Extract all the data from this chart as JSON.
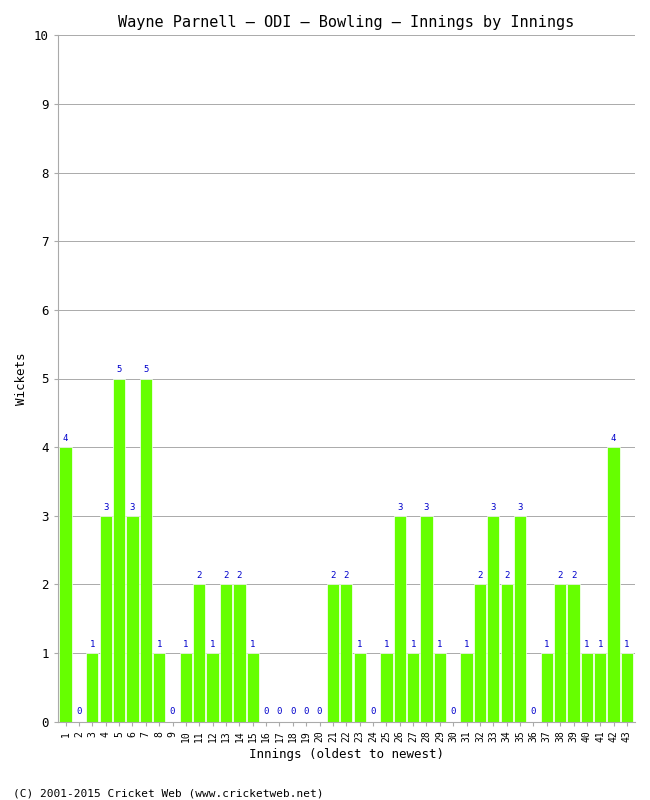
{
  "title": "Wayne Parnell – ODI – Bowling – Innings by Innings",
  "xlabel": "Innings (oldest to newest)",
  "ylabel": "Wickets",
  "ylim": [
    0,
    10
  ],
  "yticks": [
    0,
    1,
    2,
    3,
    4,
    5,
    6,
    7,
    8,
    9,
    10
  ],
  "bar_color": "#66FF00",
  "label_color": "#0000CC",
  "background_color": "#FFFFFF",
  "footer": "(C) 2001-2015 Cricket Web (www.cricketweb.net)",
  "innings": [
    1,
    2,
    3,
    4,
    5,
    6,
    7,
    8,
    9,
    10,
    11,
    12,
    13,
    14,
    15,
    16,
    17,
    18,
    19,
    20,
    21,
    22,
    23,
    24,
    25,
    26,
    27,
    28,
    29,
    30,
    31,
    32,
    33,
    34,
    35,
    36,
    37,
    38,
    39,
    40,
    41,
    42,
    43
  ],
  "wickets": [
    4,
    0,
    1,
    3,
    5,
    3,
    5,
    1,
    0,
    1,
    2,
    1,
    2,
    2,
    1,
    0,
    0,
    0,
    0,
    0,
    2,
    2,
    1,
    0,
    1,
    3,
    1,
    3,
    1,
    0,
    1,
    2,
    3,
    2,
    3,
    0,
    1,
    2,
    2,
    1,
    1,
    4,
    1
  ]
}
